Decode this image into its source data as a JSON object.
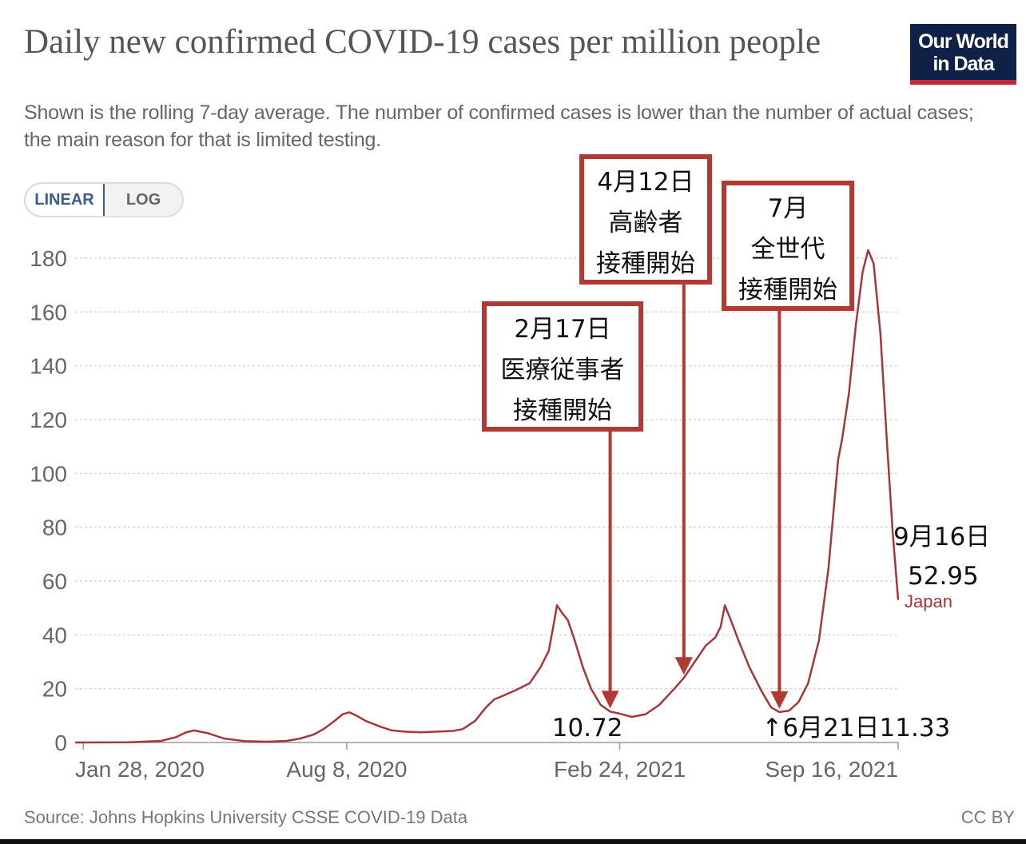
{
  "header": {
    "title": "Daily new confirmed COVID-19 cases per million people",
    "subtitle": "Shown is the rolling 7-day average. The number of confirmed cases is lower than the number of actual cases; the main reason for that is limited testing.",
    "logo_line1": "Our World",
    "logo_line2": "in Data"
  },
  "controls": {
    "linear_label": "LINEAR",
    "log_label": "LOG",
    "selected": "LINEAR"
  },
  "footer": {
    "source": "Source: Johns Hopkins University CSSE COVID-19 Data",
    "license": "CC BY"
  },
  "colors": {
    "series": "#a5373b",
    "annotation": "#b23a35",
    "grid": "#d6d6d6",
    "axis_text": "#666666"
  },
  "chart_data": {
    "type": "line",
    "ylim": [
      0,
      180
    ],
    "y_ticks": [
      0,
      20,
      40,
      60,
      80,
      100,
      120,
      140,
      160,
      180
    ],
    "x_range": [
      "2020-01-22",
      "2021-09-16"
    ],
    "x_ticks": [
      {
        "date": "2020-01-28",
        "label": "Jan 28, 2020"
      },
      {
        "date": "2020-08-08",
        "label": "Aug 8, 2020"
      },
      {
        "date": "2021-02-24",
        "label": "Feb 24, 2021"
      },
      {
        "date": "2021-09-16",
        "label": "Sep 16, 2021"
      }
    ],
    "grid": true,
    "series": [
      {
        "name": "Japan",
        "points": [
          [
            "2020-01-22",
            0
          ],
          [
            "2020-03-01",
            0.1
          ],
          [
            "2020-03-25",
            0.6
          ],
          [
            "2020-04-05",
            2.0
          ],
          [
            "2020-04-12",
            3.7
          ],
          [
            "2020-04-18",
            4.5
          ],
          [
            "2020-04-28",
            3.5
          ],
          [
            "2020-05-10",
            1.5
          ],
          [
            "2020-05-25",
            0.5
          ],
          [
            "2020-06-10",
            0.3
          ],
          [
            "2020-06-25",
            0.6
          ],
          [
            "2020-07-05",
            1.5
          ],
          [
            "2020-07-15",
            3.0
          ],
          [
            "2020-07-22",
            5.0
          ],
          [
            "2020-07-30",
            8.0
          ],
          [
            "2020-08-05",
            10.5
          ],
          [
            "2020-08-10",
            11.2
          ],
          [
            "2020-08-15",
            10.0
          ],
          [
            "2020-08-22",
            8.0
          ],
          [
            "2020-09-01",
            6.0
          ],
          [
            "2020-09-10",
            4.5
          ],
          [
            "2020-09-20",
            4.0
          ],
          [
            "2020-10-01",
            3.8
          ],
          [
            "2020-10-12",
            4.0
          ],
          [
            "2020-10-25",
            4.3
          ],
          [
            "2020-11-01",
            5.0
          ],
          [
            "2020-11-10",
            8.0
          ],
          [
            "2020-11-18",
            13.0
          ],
          [
            "2020-11-24",
            16.0
          ],
          [
            "2020-12-01",
            17.5
          ],
          [
            "2020-12-10",
            19.5
          ],
          [
            "2020-12-20",
            22.0
          ],
          [
            "2020-12-28",
            28.0
          ],
          [
            "2021-01-03",
            34.0
          ],
          [
            "2021-01-07",
            45.0
          ],
          [
            "2021-01-09",
            51.0
          ],
          [
            "2021-01-13",
            48.0
          ],
          [
            "2021-01-17",
            45.5
          ],
          [
            "2021-01-22",
            38.0
          ],
          [
            "2021-01-28",
            28.0
          ],
          [
            "2021-02-03",
            20.0
          ],
          [
            "2021-02-10",
            14.0
          ],
          [
            "2021-02-17",
            11.5
          ],
          [
            "2021-02-24",
            10.72
          ],
          [
            "2021-03-05",
            9.5
          ],
          [
            "2021-03-15",
            10.5
          ],
          [
            "2021-03-25",
            14.0
          ],
          [
            "2021-04-05",
            20.0
          ],
          [
            "2021-04-12",
            24.0
          ],
          [
            "2021-04-20",
            30.0
          ],
          [
            "2021-04-28",
            36.0
          ],
          [
            "2021-05-05",
            39.0
          ],
          [
            "2021-05-09",
            43.0
          ],
          [
            "2021-05-12",
            51.0
          ],
          [
            "2021-05-16",
            46.0
          ],
          [
            "2021-05-22",
            38.0
          ],
          [
            "2021-05-30",
            28.0
          ],
          [
            "2021-06-08",
            19.0
          ],
          [
            "2021-06-15",
            13.0
          ],
          [
            "2021-06-21",
            11.33
          ],
          [
            "2021-06-28",
            11.8
          ],
          [
            "2021-07-05",
            15.0
          ],
          [
            "2021-07-12",
            22.0
          ],
          [
            "2021-07-20",
            38.0
          ],
          [
            "2021-07-27",
            65.0
          ],
          [
            "2021-08-03",
            105.0
          ],
          [
            "2021-08-06",
            113.0
          ],
          [
            "2021-08-11",
            130.0
          ],
          [
            "2021-08-16",
            155.0
          ],
          [
            "2021-08-21",
            175.0
          ],
          [
            "2021-08-25",
            183.0
          ],
          [
            "2021-08-29",
            178.0
          ],
          [
            "2021-09-03",
            152.0
          ],
          [
            "2021-09-08",
            110.0
          ],
          [
            "2021-09-12",
            78.0
          ],
          [
            "2021-09-16",
            52.95
          ]
        ]
      }
    ],
    "series_label": "Japan",
    "annotations": [
      {
        "lines": [
          "2月17日",
          "医療従事者",
          "接種開始"
        ],
        "target_date": "2021-02-17"
      },
      {
        "lines": [
          "4月12日",
          "高齢者",
          "接種開始"
        ],
        "target_date": "2021-04-12"
      },
      {
        "lines": [
          "7月",
          "全世代",
          "接種開始"
        ],
        "target_date": "2021-06-21"
      }
    ],
    "value_labels": [
      {
        "text": "10.72",
        "date": "2021-02-24",
        "value": 10.72
      },
      {
        "text": "↑6月21日11.33",
        "date": "2021-06-21",
        "value": 11.33
      },
      {
        "text": "9月16日",
        "date": "2021-09-16",
        "value": 52.95
      },
      {
        "text": "52.95",
        "date": "2021-09-16",
        "value": 52.95
      }
    ]
  }
}
